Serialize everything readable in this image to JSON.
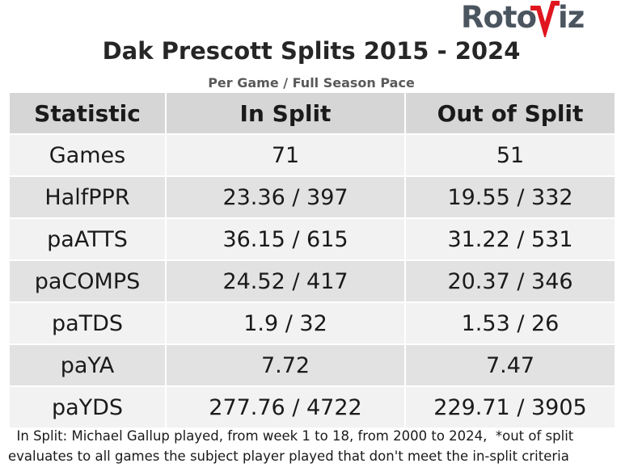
{
  "brand": {
    "logo_text": "RotoViz",
    "accent": "#e0161f",
    "logo_color": "#4b5560"
  },
  "chart_data": {
    "type": "table",
    "title": "Dak Prescott Splits 2015 - 2024",
    "subtitle": "Per Game / Full Season Pace",
    "columns": [
      "Statistic",
      "In Split",
      "Out of Split"
    ],
    "rows": [
      [
        "Games",
        "71",
        "51"
      ],
      [
        "HalfPPR",
        "23.36 / 397",
        "19.55 / 332"
      ],
      [
        "paATTS",
        "36.15 / 615",
        "31.22 / 531"
      ],
      [
        "paCOMPS",
        "24.52 / 417",
        "20.37 / 346"
      ],
      [
        "paTDS",
        "1.9 / 32",
        "1.53 / 26"
      ],
      [
        "paYA",
        "7.72",
        "7.47"
      ],
      [
        "paYDS",
        "277.76 / 4722",
        "229.71 / 3905"
      ]
    ],
    "footnote": "  In Split: Michael Gallup played, from week 1 to 18, from 2000 to 2024,  *out of split evaluates to all games the subject player played that don't meet the in-split criteria"
  }
}
